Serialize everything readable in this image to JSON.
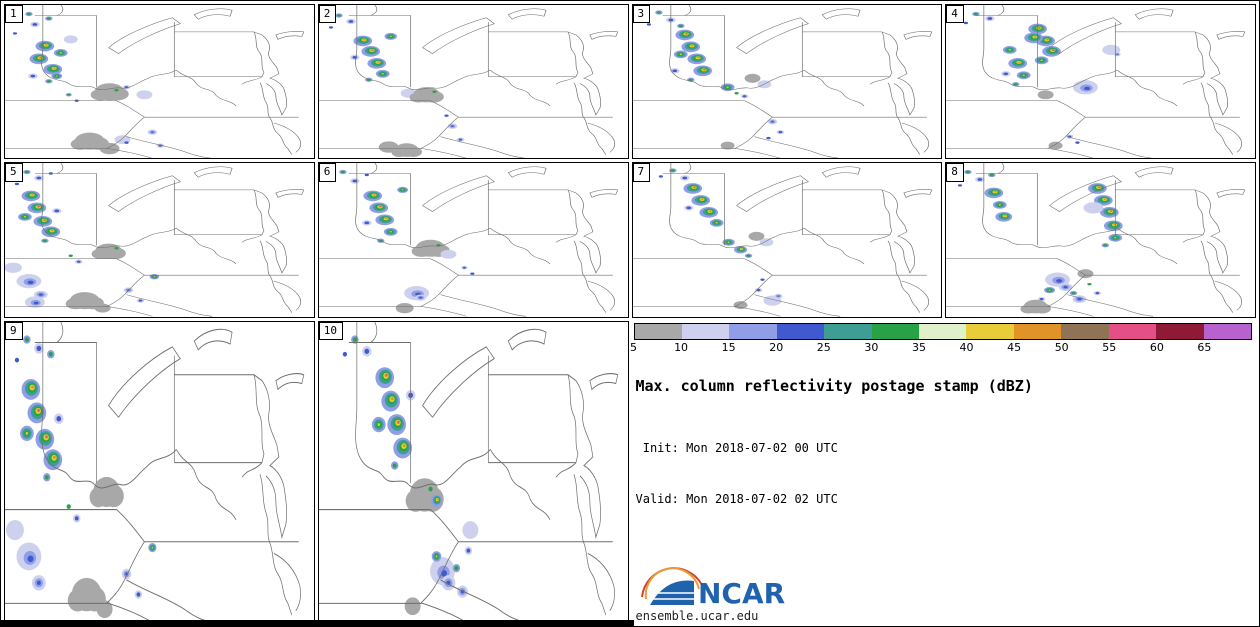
{
  "colorbar": {
    "labels": [
      "5",
      "10",
      "15",
      "20",
      "25",
      "30",
      "35",
      "40",
      "45",
      "50",
      "55",
      "60",
      "65"
    ],
    "colors": [
      "#a8a8a8",
      "#cdd1ee",
      "#8f9ee6",
      "#4059ce",
      "#3f9e94",
      "#27a346",
      "#dff0cb",
      "#e8cc3a",
      "#e09326",
      "#8f7355",
      "#e44f86",
      "#8e1a35",
      "#b862cf"
    ]
  },
  "legend": {
    "title": "Max. column reflectivity postage stamp (dBZ)",
    "init_line": " Init: Mon 2018-07-02 00 UTC",
    "valid_line": "Valid: Mon 2018-07-02 02 UTC",
    "logo_text": "NCAR",
    "footer": "ensemble.ucar.edu"
  },
  "cell_types": {
    "sev": [
      [
        0,
        0,
        7.5,
        2
      ],
      [
        0.6,
        -0.6,
        5.2,
        4
      ],
      [
        1,
        -1,
        3.4,
        5
      ],
      [
        1.3,
        -1.3,
        2.1,
        7
      ],
      [
        1.6,
        -1.6,
        1.1,
        8
      ]
    ],
    "sev2": [
      [
        0,
        0,
        7.5,
        2
      ],
      [
        0.6,
        -0.6,
        5.2,
        4
      ],
      [
        1,
        -1,
        3.4,
        5
      ],
      [
        1.3,
        -1.3,
        2.2,
        7
      ],
      [
        1.6,
        -1.6,
        1.3,
        8
      ],
      [
        1.8,
        -1.8,
        0.7,
        10
      ]
    ],
    "med": [
      [
        0,
        0,
        5.5,
        2
      ],
      [
        0,
        0,
        3.8,
        4
      ],
      [
        0,
        0,
        2.2,
        5
      ],
      [
        0,
        0,
        1,
        7
      ]
    ],
    "shw": [
      [
        0,
        0,
        3.8,
        1
      ],
      [
        0,
        0,
        1.9,
        3
      ]
    ],
    "grn": [
      [
        0,
        0,
        3,
        2
      ],
      [
        0,
        0,
        1.6,
        5
      ]
    ],
    "spk": [
      [
        0,
        0,
        1.7,
        3
      ]
    ],
    "spkg": [
      [
        0,
        0,
        1.7,
        5
      ]
    ],
    "gray": [
      [
        0,
        0,
        8,
        0
      ]
    ],
    "grayL": [
      [
        0,
        0,
        12,
        0
      ],
      [
        8,
        3,
        9,
        0
      ],
      [
        -9,
        4,
        8,
        0
      ]
    ],
    "pale": [
      [
        0,
        0,
        8,
        1
      ]
    ],
    "paleB": [
      [
        0,
        0,
        10,
        1
      ],
      [
        1,
        1,
        5,
        2
      ],
      [
        1.6,
        1.6,
        2.4,
        3
      ]
    ],
    "blu": [
      [
        0,
        0,
        5.5,
        1
      ],
      [
        0,
        0,
        3.3,
        2
      ],
      [
        0,
        0,
        1.6,
        3
      ]
    ]
  },
  "panels": [
    {
      "label": "1",
      "storms": [
        [
          "spk",
          14,
          20
        ],
        [
          "grn",
          24,
          12
        ],
        [
          "shw",
          30,
          26
        ],
        [
          "spk",
          10,
          38
        ],
        [
          "grn",
          44,
          18
        ],
        [
          "sev",
          40,
          55
        ],
        [
          "sev2",
          34,
          72
        ],
        [
          "sev",
          48,
          86
        ],
        [
          "med",
          56,
          64
        ],
        [
          "shw",
          28,
          95
        ],
        [
          "grn",
          44,
          102
        ],
        [
          "med",
          52,
          95,
          0.8
        ],
        [
          "pale",
          66,
          46,
          0.7
        ],
        [
          "grn",
          64,
          120,
          0.8
        ],
        [
          "spk",
          72,
          128
        ],
        [
          "grayL",
          105,
          116
        ],
        [
          "spkg",
          112,
          114
        ],
        [
          "shw",
          122,
          110,
          0.8
        ],
        [
          "pale",
          140,
          120,
          0.8
        ],
        [
          "grayL",
          85,
          182
        ],
        [
          "gray",
          105,
          192
        ],
        [
          "pale",
          118,
          180,
          0.8
        ],
        [
          "spk",
          122,
          184
        ],
        [
          "blu",
          148,
          170,
          0.7
        ],
        [
          "shw",
          156,
          188,
          0.8
        ]
      ]
    },
    {
      "label": "2",
      "storms": [
        [
          "grn",
          20,
          14
        ],
        [
          "shw",
          32,
          22
        ],
        [
          "spk",
          12,
          30
        ],
        [
          "sev",
          44,
          48
        ],
        [
          "sev2",
          52,
          62
        ],
        [
          "sev",
          58,
          78
        ],
        [
          "med",
          64,
          92
        ],
        [
          "shw",
          36,
          70
        ],
        [
          "grn",
          50,
          100
        ],
        [
          "med",
          72,
          42,
          0.9
        ],
        [
          "pale",
          90,
          118,
          0.8
        ],
        [
          "grayL",
          108,
          120,
          0.9
        ],
        [
          "spkg",
          116,
          116
        ],
        [
          "gray",
          70,
          190
        ],
        [
          "grayL",
          88,
          194,
          0.8
        ],
        [
          "blu",
          134,
          162,
          0.7
        ],
        [
          "shw",
          142,
          180,
          0.8
        ],
        [
          "spk",
          128,
          148
        ]
      ]
    },
    {
      "label": "3",
      "storms": [
        [
          "grn",
          26,
          10
        ],
        [
          "shw",
          38,
          20
        ],
        [
          "spk",
          16,
          26
        ],
        [
          "grn",
          48,
          28
        ],
        [
          "sev2",
          52,
          40
        ],
        [
          "sev",
          58,
          56
        ],
        [
          "sev",
          64,
          72
        ],
        [
          "sev2",
          70,
          88
        ],
        [
          "med",
          48,
          66
        ],
        [
          "grn",
          58,
          100
        ],
        [
          "shw",
          42,
          88
        ],
        [
          "med",
          95,
          110
        ],
        [
          "spkg",
          104,
          118
        ],
        [
          "shw",
          112,
          122,
          0.8
        ],
        [
          "gray",
          120,
          98,
          0.8
        ],
        [
          "pale",
          132,
          106,
          0.7
        ],
        [
          "gray",
          95,
          188,
          0.7
        ],
        [
          "blu",
          140,
          156,
          0.7
        ],
        [
          "shw",
          148,
          170,
          0.8
        ],
        [
          "spk",
          136,
          178
        ]
      ]
    },
    {
      "label": "4",
      "storms": [
        [
          "grn",
          30,
          12
        ],
        [
          "shw",
          44,
          18
        ],
        [
          "spk",
          20,
          24
        ],
        [
          "sev2",
          92,
          32
        ],
        [
          "sev",
          100,
          48
        ],
        [
          "sev2",
          106,
          62
        ],
        [
          "med",
          96,
          74
        ],
        [
          "sev",
          88,
          44
        ],
        [
          "med",
          64,
          60
        ],
        [
          "sev",
          72,
          78
        ],
        [
          "med",
          78,
          94
        ],
        [
          "shw",
          60,
          92
        ],
        [
          "grn",
          70,
          106
        ],
        [
          "paleB",
          140,
          110
        ],
        [
          "gray",
          100,
          120,
          0.8
        ],
        [
          "pale",
          166,
          60,
          0.9
        ],
        [
          "blu",
          172,
          66,
          0.5
        ],
        [
          "shw",
          124,
          176,
          0.8
        ],
        [
          "spk",
          132,
          184
        ],
        [
          "gray",
          110,
          188,
          0.7
        ]
      ]
    },
    {
      "label": "5",
      "storms": [
        [
          "grn",
          22,
          12
        ],
        [
          "shw",
          34,
          20
        ],
        [
          "spk",
          46,
          14
        ],
        [
          "spk",
          12,
          28
        ],
        [
          "sev",
          26,
          44
        ],
        [
          "sev2",
          32,
          60
        ],
        [
          "sev2",
          38,
          78
        ],
        [
          "sev",
          46,
          92
        ],
        [
          "med",
          20,
          72
        ],
        [
          "grn",
          40,
          104
        ],
        [
          "shw",
          52,
          64
        ],
        [
          "pale",
          8,
          140,
          0.9
        ],
        [
          "paleB",
          24,
          158
        ],
        [
          "blu",
          36,
          176
        ],
        [
          "paleB",
          30,
          186,
          0.8
        ],
        [
          "grayL",
          80,
          184
        ],
        [
          "gray",
          98,
          194,
          0.8
        ],
        [
          "spkg",
          66,
          124
        ],
        [
          "shw",
          74,
          132,
          0.8
        ],
        [
          "grayL",
          104,
          118,
          0.9
        ],
        [
          "spkg",
          112,
          114
        ],
        [
          "blu",
          124,
          170,
          0.7
        ],
        [
          "shw",
          136,
          184,
          0.8
        ],
        [
          "med",
          150,
          152,
          0.7
        ]
      ]
    },
    {
      "label": "6",
      "storms": [
        [
          "grn",
          24,
          12
        ],
        [
          "shw",
          36,
          24
        ],
        [
          "spk",
          48,
          16
        ],
        [
          "sev",
          54,
          44
        ],
        [
          "sev2",
          60,
          60
        ],
        [
          "sev",
          66,
          76
        ],
        [
          "med",
          72,
          92
        ],
        [
          "shw",
          48,
          80
        ],
        [
          "grn",
          62,
          104
        ],
        [
          "med",
          84,
          36,
          0.8
        ],
        [
          "grayL",
          112,
          114
        ],
        [
          "spkg",
          120,
          110
        ],
        [
          "pale",
          130,
          122,
          0.8
        ],
        [
          "paleB",
          98,
          174
        ],
        [
          "blu",
          102,
          180,
          0.8
        ],
        [
          "gray",
          86,
          194,
          0.9
        ],
        [
          "shw",
          146,
          140,
          0.7
        ],
        [
          "spk",
          154,
          148
        ]
      ]
    },
    {
      "label": "7",
      "storms": [
        [
          "grn",
          40,
          10
        ],
        [
          "spk",
          28,
          18
        ],
        [
          "shw",
          52,
          20
        ],
        [
          "sev2",
          60,
          34
        ],
        [
          "sev",
          68,
          50
        ],
        [
          "sev",
          76,
          66
        ],
        [
          "med",
          84,
          80
        ],
        [
          "shw",
          56,
          60
        ],
        [
          "med",
          96,
          106,
          0.9
        ],
        [
          "sev",
          108,
          116,
          0.7
        ],
        [
          "grn",
          116,
          124
        ],
        [
          "gray",
          124,
          98,
          0.8
        ],
        [
          "pale",
          134,
          106,
          0.7
        ],
        [
          "spk",
          130,
          156
        ],
        [
          "shw",
          126,
          170,
          0.8
        ],
        [
          "pale",
          140,
          184,
          0.9
        ],
        [
          "blu",
          146,
          178,
          0.6
        ],
        [
          "gray",
          108,
          190,
          0.7
        ]
      ]
    },
    {
      "label": "8",
      "storms": [
        [
          "grn",
          22,
          12
        ],
        [
          "shw",
          34,
          22
        ],
        [
          "spk",
          14,
          30
        ],
        [
          "grn",
          46,
          16
        ],
        [
          "sev",
          48,
          40
        ],
        [
          "med",
          54,
          56
        ],
        [
          "sev",
          58,
          72,
          0.9
        ],
        [
          "sev2",
          152,
          34
        ],
        [
          "sev",
          158,
          50
        ],
        [
          "sev2",
          164,
          66
        ],
        [
          "sev",
          168,
          84
        ],
        [
          "med",
          170,
          100
        ],
        [
          "pale",
          148,
          60
        ],
        [
          "grn",
          160,
          110
        ],
        [
          "paleB",
          112,
          156
        ],
        [
          "blu",
          120,
          166
        ],
        [
          "grn",
          128,
          174
        ],
        [
          "blu",
          134,
          182
        ],
        [
          "med",
          104,
          170,
          0.8
        ],
        [
          "shw",
          96,
          182,
          0.8
        ],
        [
          "gray",
          140,
          148,
          0.8
        ],
        [
          "grayL",
          90,
          192,
          0.8
        ],
        [
          "spkg",
          144,
          162
        ],
        [
          "shw",
          152,
          174,
          0.8
        ]
      ]
    },
    {
      "label": "9",
      "storms": [
        [
          "grn",
          22,
          12
        ],
        [
          "shw",
          34,
          18
        ],
        [
          "spk",
          12,
          26
        ],
        [
          "grn",
          46,
          22
        ],
        [
          "sev",
          26,
          46
        ],
        [
          "sev2",
          32,
          62
        ],
        [
          "sev2",
          40,
          80
        ],
        [
          "sev",
          48,
          94
        ],
        [
          "med",
          22,
          76
        ],
        [
          "grn",
          42,
          106
        ],
        [
          "shw",
          54,
          66
        ],
        [
          "pale",
          10,
          142,
          0.9
        ],
        [
          "paleB",
          24,
          160
        ],
        [
          "blu",
          34,
          178
        ],
        [
          "grayL",
          82,
          186
        ],
        [
          "gray",
          100,
          196,
          0.8
        ],
        [
          "spkg",
          64,
          126
        ],
        [
          "shw",
          72,
          134,
          0.8
        ],
        [
          "grayL",
          102,
          116,
          0.9
        ],
        [
          "blu",
          122,
          172,
          0.7
        ],
        [
          "shw",
          134,
          186,
          0.8
        ],
        [
          "med",
          148,
          154,
          0.6
        ]
      ]
    },
    {
      "label": "10",
      "storms": [
        [
          "grn",
          36,
          12
        ],
        [
          "shw",
          48,
          20
        ],
        [
          "spk",
          26,
          22
        ],
        [
          "sev2",
          66,
          38
        ],
        [
          "sev",
          72,
          54
        ],
        [
          "sev2",
          78,
          70
        ],
        [
          "sev",
          84,
          86
        ],
        [
          "med",
          60,
          70
        ],
        [
          "grn",
          76,
          98
        ],
        [
          "shw",
          92,
          50
        ],
        [
          "grayL",
          106,
          118
        ],
        [
          "spkg",
          112,
          114
        ],
        [
          "sev",
          118,
          122,
          0.6
        ],
        [
          "paleB",
          124,
          170
        ],
        [
          "blu",
          130,
          178
        ],
        [
          "grn",
          138,
          168
        ],
        [
          "blu",
          144,
          184,
          0.8
        ],
        [
          "med",
          118,
          160,
          0.7
        ],
        [
          "gray",
          94,
          194,
          0.8
        ],
        [
          "pale",
          152,
          142,
          0.8
        ],
        [
          "shw",
          150,
          156,
          0.8
        ]
      ]
    }
  ]
}
